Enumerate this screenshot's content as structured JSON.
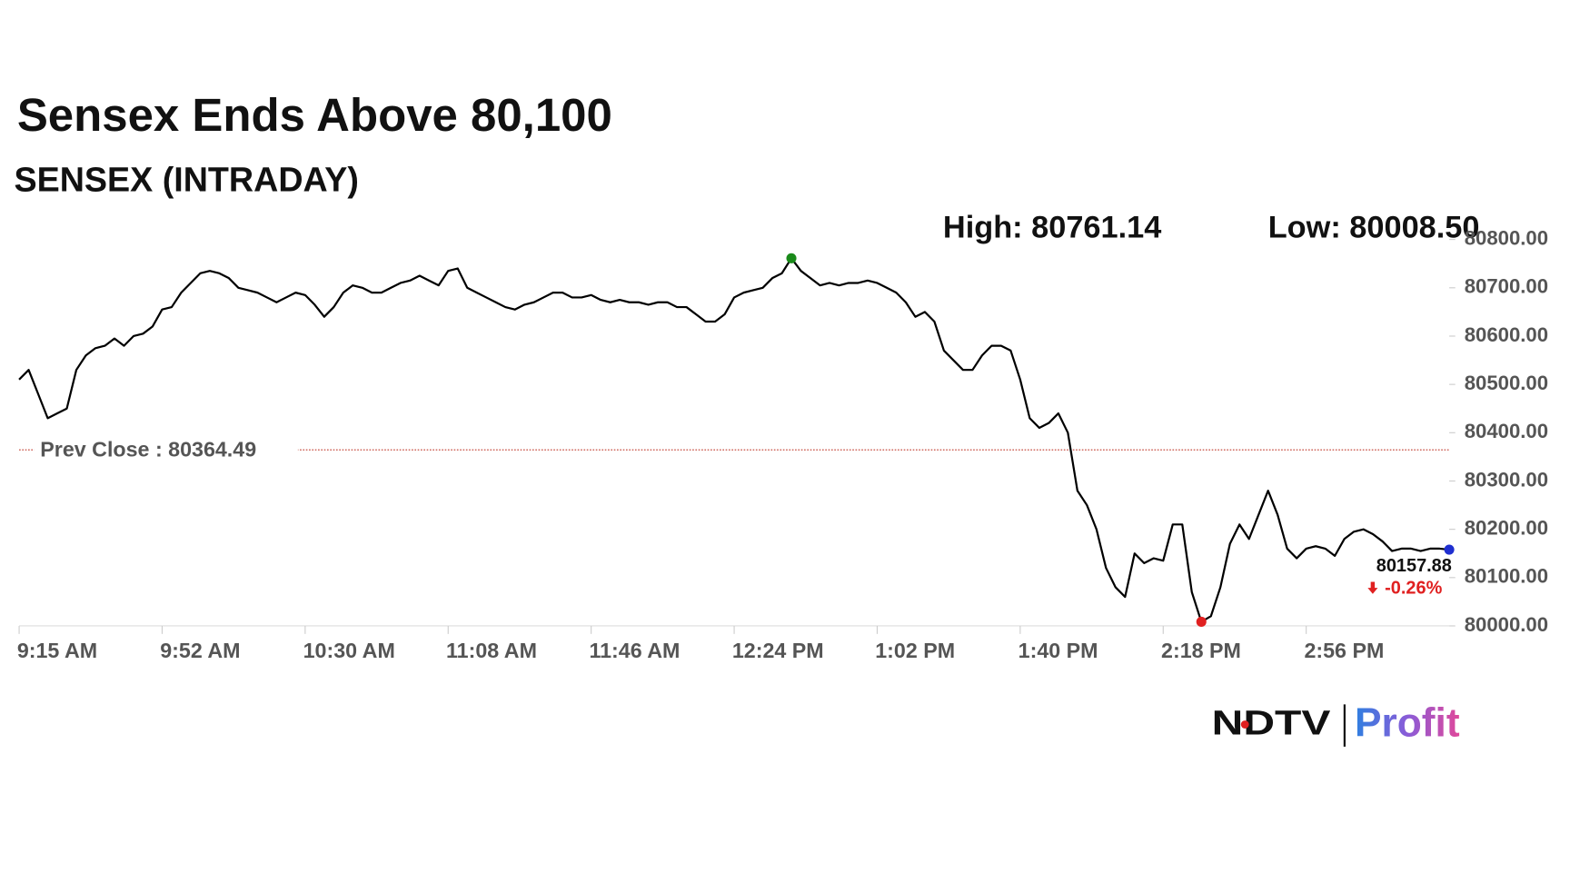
{
  "chart_data": {
    "type": "line",
    "title": "Sensex Ends Above 80,100",
    "subtitle": "SENSEX (INTRADAY)",
    "high_label": "High: 80761.14",
    "low_label": "Low: 80008.50",
    "color": "#000000",
    "categories": [
      "9:15 AM",
      null,
      null,
      null,
      null,
      null,
      null,
      null,
      null,
      null,
      null,
      null,
      null,
      null,
      null,
      "9:52 AM",
      null,
      null,
      null,
      null,
      null,
      null,
      null,
      null,
      null,
      null,
      null,
      null,
      null,
      null,
      "10:30 AM",
      null,
      null,
      null,
      null,
      null,
      null,
      null,
      null,
      null,
      null,
      null,
      null,
      null,
      null,
      "11:08 AM",
      null,
      null,
      null,
      null,
      null,
      null,
      null,
      null,
      null,
      null,
      null,
      null,
      null,
      null,
      "11:46 AM",
      null,
      null,
      null,
      null,
      null,
      null,
      null,
      null,
      null,
      null,
      null,
      null,
      null,
      null,
      "12:24 PM",
      null,
      null,
      null,
      null,
      null,
      null,
      null,
      null,
      null,
      null,
      null,
      null,
      null,
      null,
      "1:02 PM",
      null,
      null,
      null,
      null,
      null,
      null,
      null,
      null,
      null,
      null,
      null,
      null,
      null,
      null,
      "1:40 PM",
      null,
      null,
      null,
      null,
      null,
      null,
      null,
      null,
      null,
      null,
      null,
      null,
      null,
      null,
      "2:18 PM",
      null,
      null,
      null,
      null,
      null,
      null,
      null,
      null,
      null,
      null,
      null,
      null,
      null,
      null,
      "2:56 PM",
      null,
      null,
      null,
      null,
      null,
      null,
      null,
      null,
      null,
      null,
      null,
      null,
      null,
      null,
      null
    ],
    "values": [
      80510,
      80530,
      80480,
      80430,
      80440,
      80450,
      80530,
      80560,
      80575,
      80580,
      80595,
      80580,
      80600,
      80605,
      80620,
      80655,
      80660,
      80690,
      80710,
      80730,
      80735,
      80730,
      80720,
      80700,
      80695,
      80690,
      80680,
      80670,
      80680,
      80690,
      80685,
      80665,
      80640,
      80660,
      80690,
      80705,
      80700,
      80690,
      80690,
      80700,
      80710,
      80715,
      80725,
      80715,
      80705,
      80735,
      80740,
      80700,
      80690,
      80680,
      80670,
      80660,
      80655,
      80665,
      80670,
      80680,
      80690,
      80690,
      80680,
      80680,
      80685,
      80675,
      80670,
      80675,
      80670,
      80670,
      80665,
      80670,
      80670,
      80660,
      80660,
      80645,
      80630,
      80630,
      80645,
      80680,
      80690,
      80695,
      80700,
      80720,
      80730,
      80761.14,
      80735,
      80720,
      80705,
      80710,
      80705,
      80710,
      80710,
      80715,
      80710,
      80700,
      80690,
      80670,
      80640,
      80650,
      80630,
      80570,
      80550,
      80530,
      80530,
      80560,
      80580,
      80580,
      80570,
      80510,
      80430,
      80410,
      80420,
      80440,
      80400,
      80280,
      80250,
      80200,
      80120,
      80080,
      80060,
      80150,
      80130,
      80140,
      80135,
      80210,
      80210,
      80070,
      80008.5,
      80020,
      80080,
      80170,
      80210,
      80180,
      80230,
      80280,
      80230,
      80160,
      80140,
      80160,
      80165,
      80160,
      80145,
      80180,
      80195,
      80200,
      80190,
      80175,
      80155,
      80160,
      80160,
      80155,
      80160,
      80160,
      80157.88
    ],
    "value_labels": [
      null,
      null,
      null,
      null,
      null,
      null,
      null,
      null,
      null,
      null,
      null,
      null,
      null,
      null,
      null,
      null,
      null,
      null,
      null,
      null,
      null,
      null,
      null,
      null,
      null,
      null,
      null,
      null,
      null,
      null,
      null,
      null,
      null,
      null,
      null,
      null,
      null,
      null,
      null,
      null,
      null,
      null,
      null,
      null,
      null,
      null,
      null,
      null,
      null,
      null,
      null,
      null,
      null,
      null,
      null,
      null,
      null,
      null,
      null,
      null,
      null,
      null,
      null,
      null,
      null,
      null,
      null,
      null,
      null,
      null,
      null,
      null,
      null,
      null,
      null,
      null,
      null,
      null,
      null,
      null,
      null,
      null,
      null,
      null,
      null,
      null,
      null,
      null,
      null,
      null,
      null,
      null,
      null,
      null,
      null,
      null,
      null,
      null,
      null,
      null,
      null,
      null,
      null,
      null,
      null,
      null,
      null,
      null,
      null,
      null,
      null,
      null,
      null,
      null,
      null,
      null,
      null,
      null,
      null,
      null,
      null,
      null,
      null,
      null,
      null,
      null,
      null,
      null,
      null,
      null,
      null,
      null,
      null,
      null,
      null,
      null,
      null,
      null,
      null,
      null,
      null,
      null,
      null,
      null,
      null,
      null,
      null,
      null,
      null,
      null,
      "80157.88"
    ],
    "change_label": "-0.26%",
    "high_index": 81,
    "low_index": 124,
    "prev_close": 80364.49,
    "prev_close_label": "Prev Close : 80364.49",
    "ylim": [
      80000,
      80800
    ],
    "yticks": [
      {
        "value": 80000,
        "label": "80000.00"
      },
      {
        "value": 80100,
        "label": "80100.00"
      },
      {
        "value": 80200,
        "label": "80200.00"
      },
      {
        "value": 80300,
        "label": "80300.00"
      },
      {
        "value": 80400,
        "label": "80400.00"
      },
      {
        "value": 80500,
        "label": "80500.00"
      },
      {
        "value": 80600,
        "label": "80600.00"
      },
      {
        "value": 80700,
        "label": "80700.00"
      },
      {
        "value": 80800,
        "label": "80800.00"
      }
    ]
  },
  "brand": {
    "name": "NDTV",
    "product": "Profit"
  }
}
